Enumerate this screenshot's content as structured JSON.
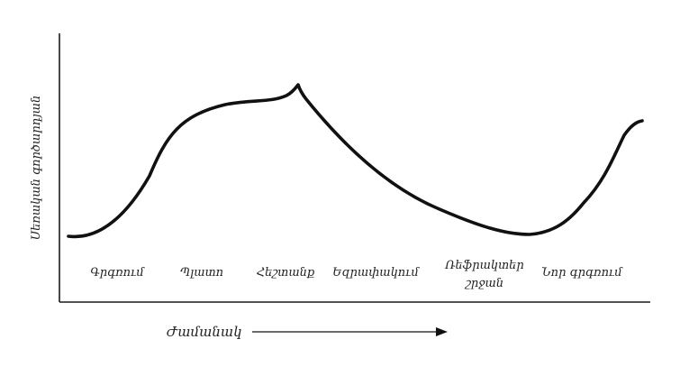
{
  "diagram": {
    "y_axis_label": "Սեռական գործարդյան",
    "x_axis_label": "Ժամանակ",
    "stages": [
      {
        "label": "Գրգռում"
      },
      {
        "label": "Պլատո"
      },
      {
        "label": "Հեշտանք"
      },
      {
        "label": "Եզրափակում"
      },
      {
        "label": "Ռեֆրակտեր",
        "label_line2": "շրջան"
      },
      {
        "label": "Նոր գրգռում"
      }
    ]
  }
}
